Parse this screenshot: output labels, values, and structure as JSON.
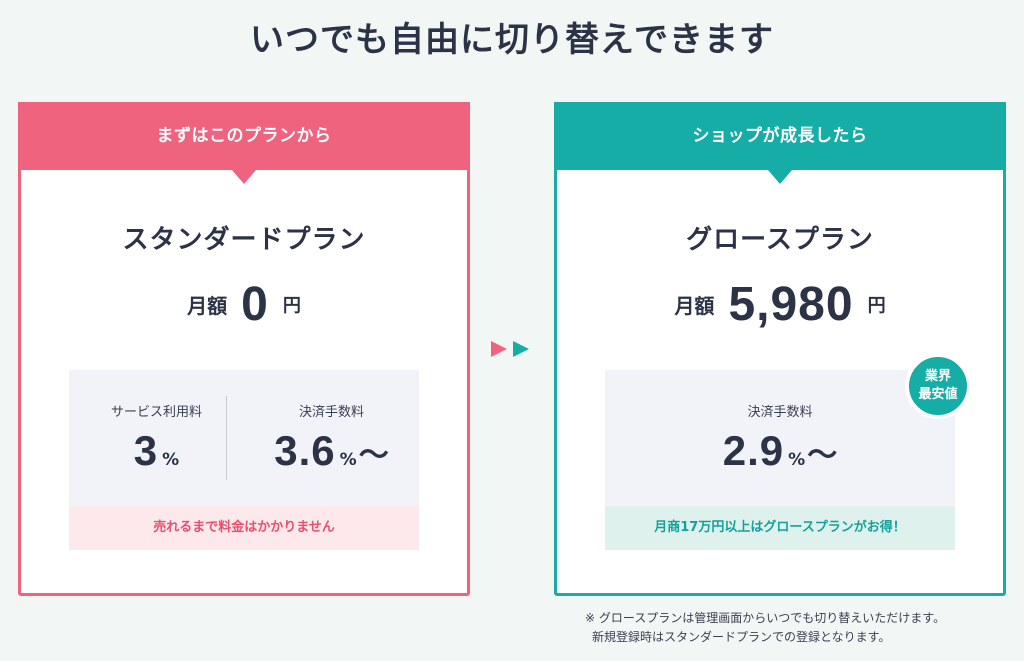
{
  "title": "いつでも自由に切り替えできます",
  "standard": {
    "header": "まずはこのプランから",
    "plan_name": "スタンダードプラン",
    "price_label": "月額",
    "price_value": "0",
    "price_unit": "円",
    "fees": [
      {
        "label": "サービス利用料",
        "value": "3",
        "unit": "%",
        "suffix": ""
      },
      {
        "label": "決済手数料",
        "value": "3.6",
        "unit": "%",
        "suffix": "〜"
      }
    ],
    "note": "売れるまで料金はかかりません"
  },
  "growth": {
    "header": "ショップが成長したら",
    "plan_name": "グロースプラン",
    "price_label": "月額",
    "price_value": "5,980",
    "price_unit": "円",
    "fee": {
      "label": "決済手数料",
      "value": "2.9",
      "unit": "%",
      "suffix": "〜"
    },
    "note": "月商17万円以上はグロースプランがお得！",
    "badge_line1": "業界",
    "badge_line2": "最安値"
  },
  "footnote": {
    "line1": "※ グロースプランは管理画面からいつでも切り替えいただけます。",
    "line2": "新規登録時はスタンダードプランでの登録となります。"
  },
  "colors": {
    "standard_accent": "#f0637f",
    "growth_accent": "#16ada7",
    "text_dark": "#2d3346"
  },
  "icons": {
    "arrows": "double-right-arrow-icon"
  }
}
